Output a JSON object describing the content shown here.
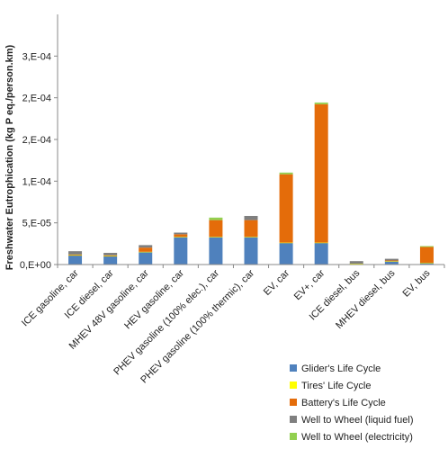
{
  "chart_data": {
    "type": "bar",
    "stacked": true,
    "ylabel": "Freshwater Eutrophication (kg P eq./person.km)",
    "ylim": [
      0,
      0.0003
    ],
    "yticks": [
      "0,E+00",
      "5,E-05",
      "1,E-04",
      "2,E-04",
      "2,E-04",
      "3,E-04"
    ],
    "ytick_values": [
      0,
      5e-05,
      0.0001,
      0.00015,
      0.0002,
      0.00025
    ],
    "grid": false,
    "legend_position": "bottom-right",
    "categories": [
      "ICE gasoline, car",
      "ICE diesel, car",
      "MHEV 48V gasoline, car",
      "HEV gasoline, car",
      "PHEV gasoline (100% elec.), car",
      "PHEV gasoline (100% thermic), car",
      "EV, car",
      "EV+, car",
      "ICE diesel, bus",
      "MHEV diesel, bus",
      "EV, bus"
    ],
    "series": [
      {
        "name": "Glider's Life Cycle",
        "color": "#4f81bd",
        "values": [
          1.1e-05,
          1e-05,
          1.5e-05,
          3.3e-05,
          3.3e-05,
          3.3e-05,
          2.6e-05,
          2.6e-05,
          1e-06,
          4e-06,
          2e-06
        ]
      },
      {
        "name": "Tires' Life Cycle",
        "color": "#ffff00",
        "values": [
          3e-07,
          3e-07,
          3e-07,
          3e-07,
          3e-07,
          3e-07,
          3e-07,
          3e-07,
          1e-07,
          1e-07,
          1e-07
        ]
      },
      {
        "name": "Battery's Life Cycle",
        "color": "#e46c0a",
        "values": [
          7e-07,
          7e-07,
          5e-06,
          3e-06,
          2e-05,
          2e-05,
          8.2e-05,
          0.000166,
          0.0,
          8e-07,
          1.9e-05
        ]
      },
      {
        "name": "Well to Wheel (liquid fuel)",
        "color": "#7f7f7f",
        "values": [
          4e-06,
          3e-06,
          3e-06,
          2e-06,
          0.0,
          5e-06,
          0.0,
          0.0,
          3e-06,
          2e-06,
          0.0
        ]
      },
      {
        "name": "Well to Wheel (electricity)",
        "color": "#92d050",
        "values": [
          0.0,
          0.0,
          0.0,
          0.0,
          3e-06,
          0.0,
          2e-06,
          2e-06,
          0.0,
          0.0,
          1e-06
        ]
      }
    ]
  }
}
